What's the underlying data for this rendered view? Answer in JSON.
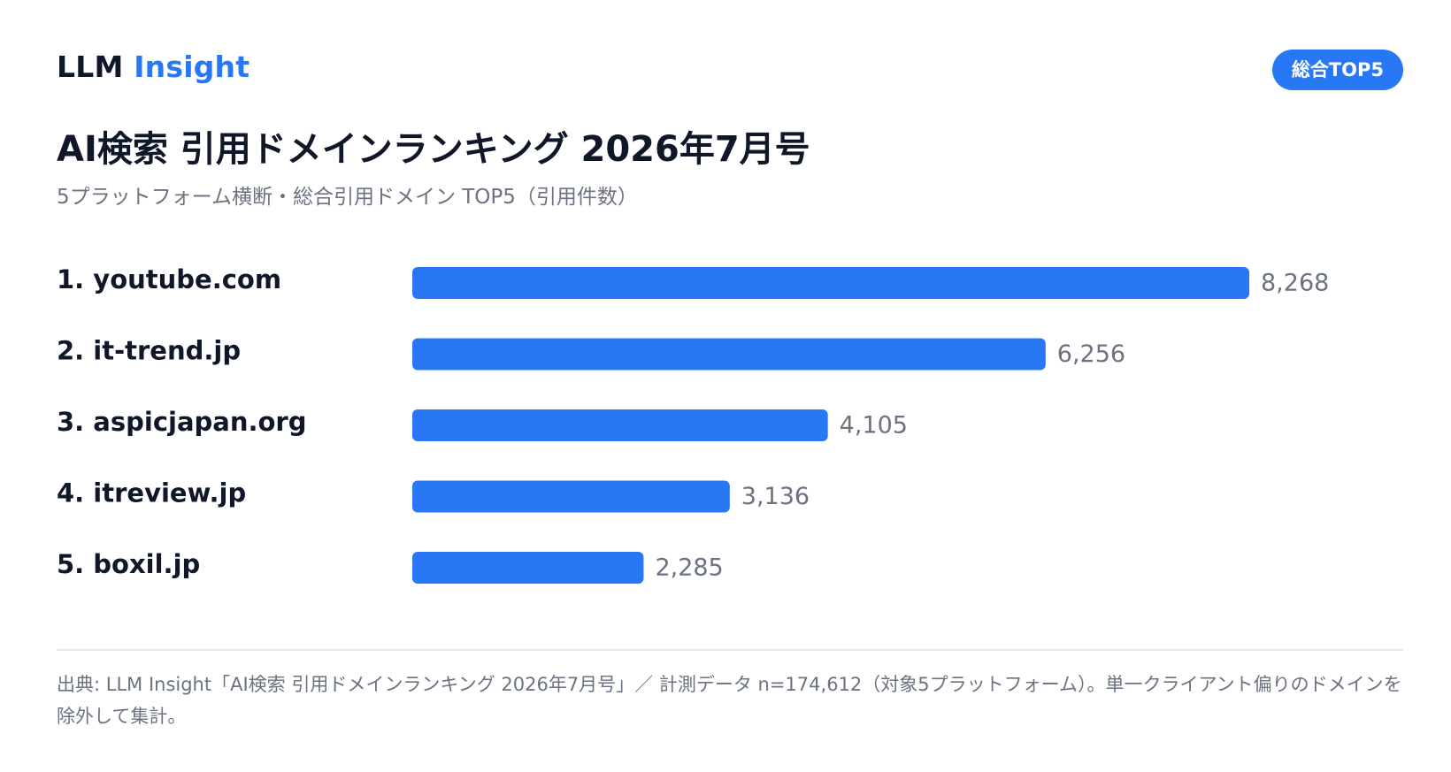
{
  "header": {
    "brand_part1": "LLM",
    "brand_part2": "Insight",
    "badge": "総合TOP5",
    "title": "AI検索 引用ドメインランキング 2026年7月号",
    "subtitle": "5プラットフォーム横断・総合引用ドメイン TOP5（引用件数）"
  },
  "colors": {
    "accent": "#2878f5",
    "text_dark": "#0f1729",
    "text_muted": "#6b7280",
    "divider": "#e5e7eb"
  },
  "chart_data": {
    "type": "bar",
    "orientation": "horizontal",
    "categories": [
      "1. youtube.com",
      "2. it-trend.jp",
      "3. aspicjapan.org",
      "4. itreview.jp",
      "5. boxil.jp"
    ],
    "values": [
      8268,
      6256,
      4105,
      3136,
      2285
    ],
    "value_labels": [
      "8,268",
      "6,256",
      "4,105",
      "3,136",
      "2,285"
    ],
    "title": "AI検索 引用ドメインランキング 2026年7月号",
    "xlim": [
      0,
      8268
    ],
    "grid": false,
    "legend": "none"
  },
  "footer": {
    "note": "出典: LLM Insight「AI検索 引用ドメインランキング 2026年7月号」／ 計測データ n=174,612（対象5プラットフォーム）。単一クライアント偏りのドメインを除外して集計。"
  }
}
